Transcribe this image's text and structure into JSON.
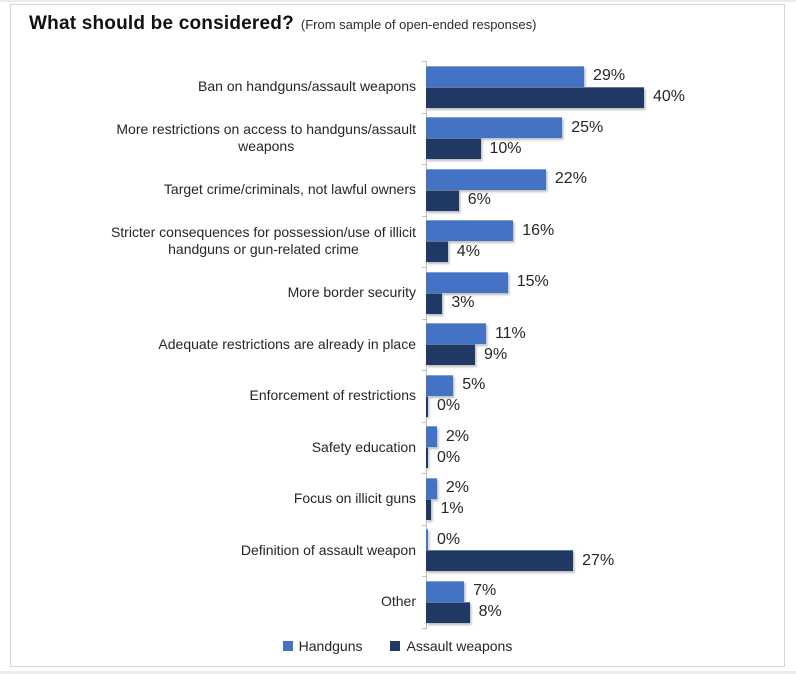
{
  "title": "What should be considered?",
  "subtitle": "(From sample of open-ended responses)",
  "legend": {
    "position": "bottom",
    "items": [
      {
        "label": "Handguns",
        "color": "#4472C4"
      },
      {
        "label": "Assault weapons",
        "color": "#1F3864"
      }
    ]
  },
  "chart_data": {
    "type": "bar",
    "orientation": "horizontal",
    "title": "What should be considered?",
    "subtitle": "(From sample of open-ended responses)",
    "categories": [
      "Ban on handguns/assault weapons",
      "More restrictions on access to handguns/assault\nweapons",
      "Target crime/criminals, not lawful owners",
      "Stricter consequences for possession/use of illicit\nhandguns or gun-related crime",
      "More border security",
      "Adequate restrictions are already in place",
      "Enforcement of restrictions",
      "Safety education",
      "Focus on illicit guns",
      "Definition of assault weapon",
      "Other"
    ],
    "series": [
      {
        "name": "Handguns",
        "color": "#4472C4",
        "values": [
          29,
          25,
          22,
          16,
          15,
          11,
          5,
          2,
          2,
          0,
          7
        ]
      },
      {
        "name": "Assault weapons",
        "color": "#1F3864",
        "values": [
          40,
          10,
          6,
          4,
          3,
          9,
          0,
          0,
          1,
          27,
          8
        ]
      }
    ],
    "value_suffix": "%",
    "xlim": [
      0,
      40
    ],
    "data_labels": true,
    "grid": false,
    "axis_color": "#BFBFBF",
    "legend_position": "bottom"
  }
}
